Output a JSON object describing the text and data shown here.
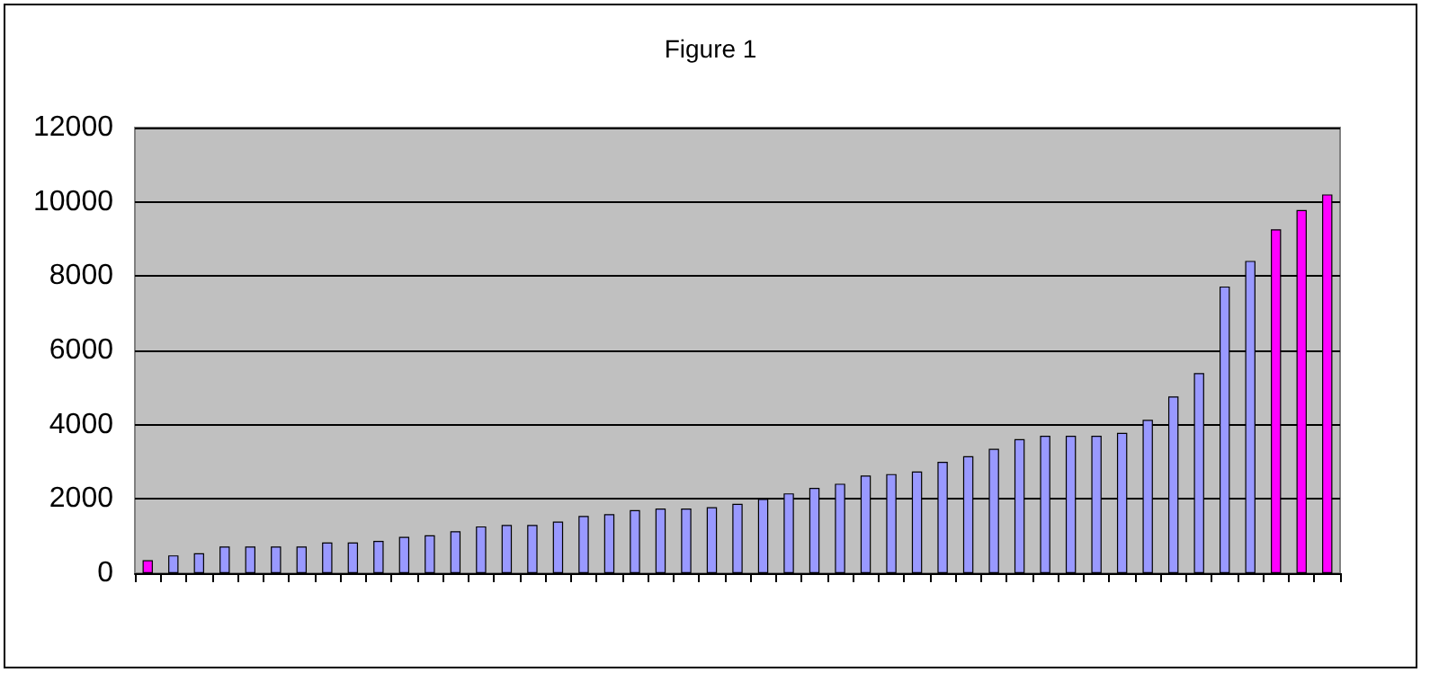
{
  "chart_data": {
    "type": "bar",
    "title": "Figure 1",
    "categories": [
      null,
      null,
      null,
      null,
      null,
      null,
      null,
      null,
      null,
      null,
      null,
      null,
      null,
      null,
      null,
      null,
      null,
      null,
      null,
      null,
      null,
      null,
      null,
      null,
      null,
      null,
      null,
      null,
      null,
      null,
      null,
      null,
      null,
      null,
      null,
      null,
      null,
      null,
      null,
      null,
      null,
      null,
      null,
      null,
      null,
      null,
      null
    ],
    "values": [
      350,
      480,
      540,
      720,
      720,
      720,
      720,
      830,
      830,
      870,
      980,
      1020,
      1130,
      1260,
      1300,
      1300,
      1390,
      1540,
      1590,
      1700,
      1740,
      1740,
      1780,
      1870,
      2000,
      2150,
      2300,
      2410,
      2630,
      2670,
      2740,
      3000,
      3150,
      3350,
      3610,
      3700,
      3700,
      3700,
      3780,
      4130,
      4760,
      5390,
      7720,
      8410,
      9260,
      9780,
      10200
    ],
    "colors": [
      "#ff00ff",
      "#9999ff",
      "#9999ff",
      "#9999ff",
      "#9999ff",
      "#9999ff",
      "#9999ff",
      "#9999ff",
      "#9999ff",
      "#9999ff",
      "#9999ff",
      "#9999ff",
      "#9999ff",
      "#9999ff",
      "#9999ff",
      "#9999ff",
      "#9999ff",
      "#9999ff",
      "#9999ff",
      "#9999ff",
      "#9999ff",
      "#9999ff",
      "#9999ff",
      "#9999ff",
      "#9999ff",
      "#9999ff",
      "#9999ff",
      "#9999ff",
      "#9999ff",
      "#9999ff",
      "#9999ff",
      "#9999ff",
      "#9999ff",
      "#9999ff",
      "#9999ff",
      "#9999ff",
      "#9999ff",
      "#9999ff",
      "#9999ff",
      "#9999ff",
      "#9999ff",
      "#9999ff",
      "#9999ff",
      "#9999ff",
      "#ff00ff",
      "#ff00ff",
      "#ff00ff"
    ],
    "ylim": [
      0,
      12000
    ],
    "yticks": [
      0,
      2000,
      4000,
      6000,
      8000,
      10000,
      12000
    ],
    "grid": "y"
  }
}
